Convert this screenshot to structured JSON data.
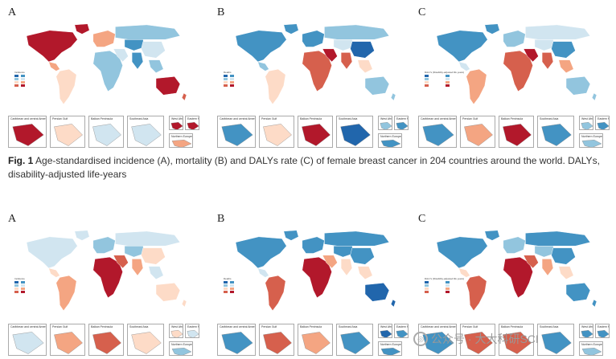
{
  "figure1": {
    "caption_label": "Fig. 1",
    "caption_text": "Age-standardised incidence (A), mortality (B) and DALYs rate (C) of female breast cancer in 204 countries around the world. DALYs, disability-adjusted life-years",
    "panels": [
      {
        "label": "A",
        "legend_title": "Incidence",
        "palette": [
          "#2166ac",
          "#4393c3",
          "#92c5de",
          "#d1e5f0",
          "#fddbc7",
          "#f4a582",
          "#d6604d",
          "#b2182b"
        ]
      },
      {
        "label": "B",
        "legend_title": "Deaths",
        "palette": [
          "#2166ac",
          "#4393c3",
          "#92c5de",
          "#d1e5f0",
          "#fddbc7",
          "#f4a582",
          "#d6604d",
          "#b2182b"
        ]
      },
      {
        "label": "C",
        "legend_title": "DALYs (Disability-adjusted life years)",
        "palette": [
          "#2166ac",
          "#4393c3",
          "#92c5de",
          "#d1e5f0",
          "#fddbc7",
          "#f4a582",
          "#d6604d",
          "#b2182b"
        ]
      }
    ]
  },
  "figure2": {
    "panels": [
      {
        "label": "A",
        "legend_title": "Incidence",
        "palette": [
          "#2166ac",
          "#4393c3",
          "#92c5de",
          "#d1e5f0",
          "#fddbc7",
          "#f4a582",
          "#d6604d",
          "#b2182b"
        ]
      },
      {
        "label": "B",
        "legend_title": "Deaths",
        "palette": [
          "#2166ac",
          "#4393c3",
          "#92c5de",
          "#d1e5f0",
          "#fddbc7",
          "#f4a582",
          "#d6604d",
          "#b2182b"
        ]
      },
      {
        "label": "C",
        "legend_title": "DALYs (Disability-adjusted life years)",
        "palette": [
          "#2166ac",
          "#4393c3",
          "#92c5de",
          "#d1e5f0",
          "#fddbc7",
          "#f4a582",
          "#d6604d",
          "#b2182b"
        ]
      }
    ]
  },
  "insets": {
    "caribbean": "Caribbean and central America",
    "persian": "Persian Gulf",
    "balkan": "Balkan Peninsula",
    "seasia": "Southeast Asia",
    "westafrica": "West Africa",
    "eastern_med": "Eastern Mediterranean",
    "northern_europe": "Northern Europe"
  },
  "watermark": {
    "text": "公众号 · 大大科研SCI",
    "logo_icon": "wechat-logo-icon"
  }
}
